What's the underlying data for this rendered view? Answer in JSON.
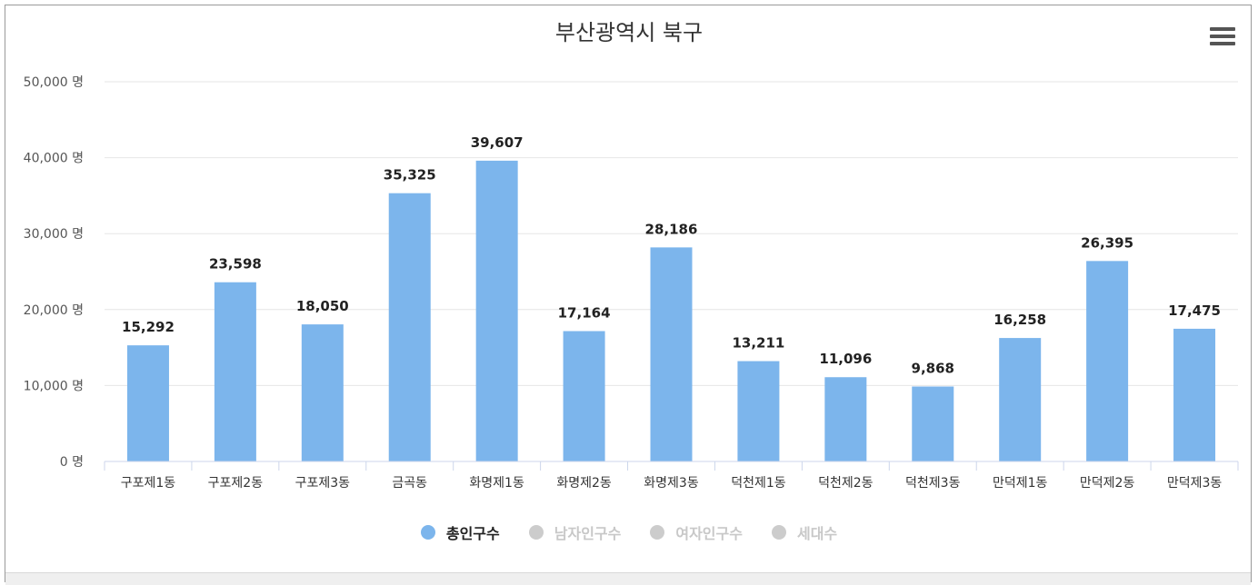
{
  "chart_data": {
    "type": "bar",
    "title": "부산광역시 북구",
    "categories": [
      "구포제1동",
      "구포제2동",
      "구포제3동",
      "금곡동",
      "화명제1동",
      "화명제2동",
      "화명제3동",
      "덕천제1동",
      "덕천제2동",
      "덕천제3동",
      "만덕제1동",
      "만덕제2동",
      "만덕제3동"
    ],
    "series": [
      {
        "name": "총인구수",
        "values": [
          15292,
          23598,
          18050,
          35325,
          39607,
          17164,
          28186,
          13211,
          11096,
          9868,
          16258,
          26395,
          17475
        ]
      }
    ],
    "value_labels": [
      "15,292",
      "23,598",
      "18,050",
      "35,325",
      "39,607",
      "17,164",
      "28,186",
      "13,211",
      "11,096",
      "9,868",
      "16,258",
      "26,395",
      "17,475"
    ],
    "ylim": [
      0,
      50000
    ],
    "y_ticks": [
      0,
      10000,
      20000,
      30000,
      40000,
      50000
    ],
    "y_tick_labels": [
      "0 명",
      "10,000 명",
      "20,000 명",
      "30,000 명",
      "40,000 명",
      "50,000 명"
    ],
    "grid": true,
    "legend_position": "bottom",
    "bar_color": "#7cb5ec"
  },
  "legend": [
    {
      "label": "총인구수",
      "color": "#7cb5ec",
      "active": true
    },
    {
      "label": "남자인구수",
      "color": "#cccccc",
      "active": false
    },
    {
      "label": "여자인구수",
      "color": "#cccccc",
      "active": false
    },
    {
      "label": "세대수",
      "color": "#cccccc",
      "active": false
    }
  ],
  "menu": {
    "icon": "hamburger-menu-icon"
  }
}
